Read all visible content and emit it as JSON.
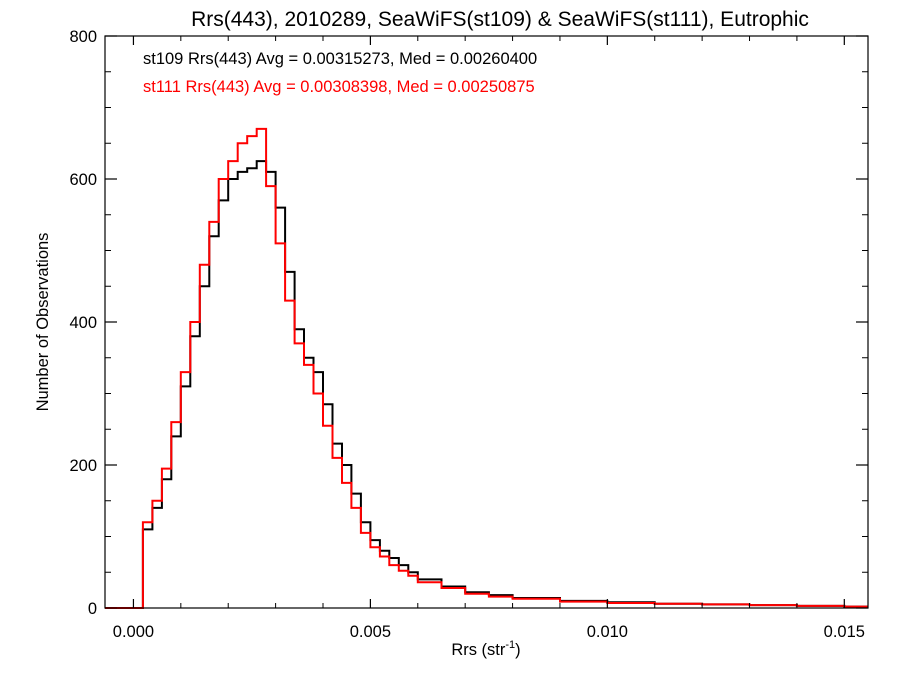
{
  "chart_data": {
    "type": "line",
    "title": "Rrs(443), 2010289, SeaWiFS(st109) & SeaWiFS(st111), Eutrophic",
    "xlabel": "Rrs (str⁻¹)",
    "ylabel": "Number of Observations",
    "xlim": [
      -0.0006,
      0.0155
    ],
    "ylim": [
      0,
      800
    ],
    "x_ticks": [
      0.0,
      0.005,
      0.01,
      0.015
    ],
    "x_tick_labels": [
      "0.000",
      "0.005",
      "0.010",
      "0.015"
    ],
    "y_ticks": [
      0,
      200,
      400,
      600,
      800
    ],
    "y_tick_labels": [
      "0",
      "200",
      "400",
      "600",
      "800"
    ],
    "grid": false,
    "annotations": [
      {
        "text": "st109 Rrs(443) Avg = 0.00315273, Med = 0.00260400",
        "color": "#000000"
      },
      {
        "text": "st111 Rrs(443) Avg = 0.00308398, Med = 0.00250875",
        "color": "#ff0000"
      }
    ],
    "series": [
      {
        "color": "#000000",
        "x": [
          -0.0006,
          0.0,
          0.0002,
          0.0004,
          0.0006,
          0.0008,
          0.001,
          0.0012,
          0.0014,
          0.0016,
          0.0018,
          0.002,
          0.0022,
          0.0024,
          0.0026,
          0.0028,
          0.003,
          0.0032,
          0.0034,
          0.0036,
          0.0038,
          0.004,
          0.0042,
          0.0044,
          0.0046,
          0.0048,
          0.005,
          0.0052,
          0.0054,
          0.0056,
          0.0058,
          0.006,
          0.0065,
          0.007,
          0.0075,
          0.008,
          0.009,
          0.01,
          0.011,
          0.012,
          0.013,
          0.014,
          0.015,
          0.0155
        ],
        "y": [
          0,
          0,
          110,
          140,
          180,
          240,
          310,
          380,
          450,
          520,
          570,
          600,
          610,
          615,
          625,
          610,
          560,
          470,
          390,
          350,
          330,
          285,
          230,
          200,
          160,
          120,
          95,
          80,
          70,
          60,
          50,
          40,
          30,
          22,
          18,
          14,
          10,
          8,
          6,
          5,
          4,
          3,
          2,
          2
        ]
      },
      {
        "color": "#ff0000",
        "x": [
          -0.0006,
          0.0,
          0.0002,
          0.0004,
          0.0006,
          0.0008,
          0.001,
          0.0012,
          0.0014,
          0.0016,
          0.0018,
          0.002,
          0.0022,
          0.0024,
          0.0026,
          0.0028,
          0.003,
          0.0032,
          0.0034,
          0.0036,
          0.0038,
          0.004,
          0.0042,
          0.0044,
          0.0046,
          0.0048,
          0.005,
          0.0052,
          0.0054,
          0.0056,
          0.0058,
          0.006,
          0.0065,
          0.007,
          0.0075,
          0.008,
          0.009,
          0.01,
          0.011,
          0.012,
          0.013,
          0.014,
          0.015,
          0.0155
        ],
        "y": [
          0,
          0,
          120,
          150,
          195,
          260,
          330,
          400,
          480,
          540,
          600,
          625,
          650,
          660,
          670,
          590,
          510,
          430,
          370,
          340,
          300,
          255,
          210,
          175,
          140,
          105,
          85,
          72,
          60,
          52,
          45,
          36,
          28,
          20,
          16,
          13,
          9,
          7,
          6,
          5,
          4,
          3,
          2,
          2
        ]
      }
    ]
  }
}
